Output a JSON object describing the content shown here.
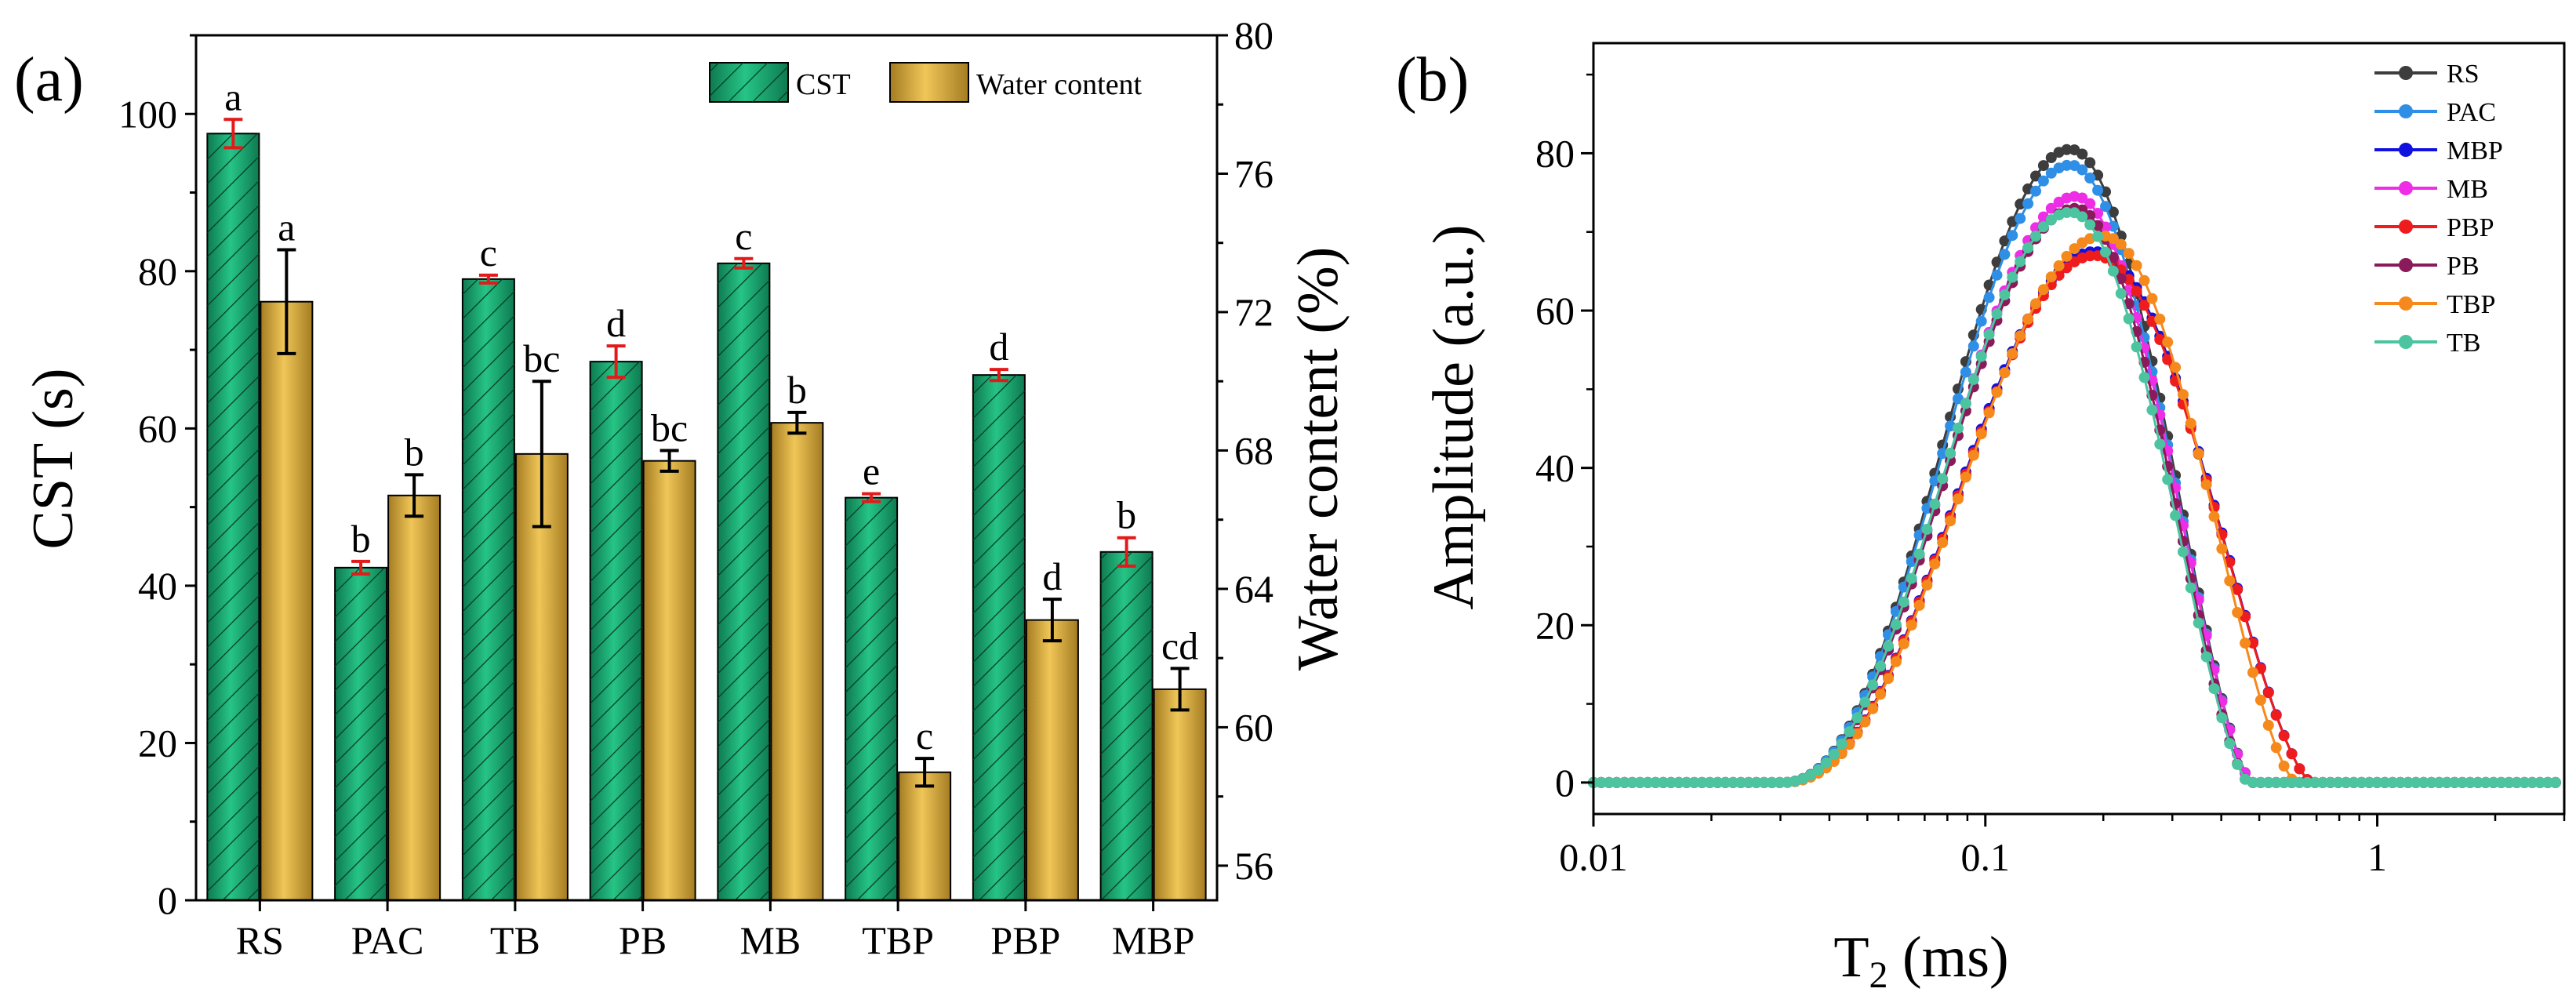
{
  "chart_data": [
    {
      "type": "bar",
      "panel_label": "(a)",
      "categories": [
        "RS",
        "PAC",
        "TB",
        "PB",
        "MB",
        "TBP",
        "PBP",
        "MBP"
      ],
      "ylabel": "CST (s)",
      "ylabel_right": "Water content (%)",
      "ylim": [
        0,
        110
      ],
      "ylim_right": [
        55,
        80
      ],
      "yticks": [
        "0",
        "20",
        "40",
        "60",
        "80",
        "100"
      ],
      "yticks_right": [
        "56",
        "60",
        "64",
        "68",
        "72",
        "76",
        "80"
      ],
      "legend": [
        "CST",
        "Water content"
      ],
      "legend_position": "top-right",
      "series": [
        {
          "name": "CST",
          "axis": "left",
          "color": "#1aa06a",
          "values": [
            97.5,
            42.3,
            79.0,
            68.5,
            81.0,
            51.2,
            66.8,
            44.3
          ],
          "errors": [
            1.8,
            0.8,
            0.5,
            2.0,
            0.6,
            0.5,
            0.7,
            1.8
          ],
          "letters": [
            "a",
            "b",
            "c",
            "d",
            "c",
            "e",
            "d",
            "b"
          ]
        },
        {
          "name": "Water content",
          "axis": "right",
          "color": "#d4a93a",
          "values": [
            72.3,
            66.7,
            67.9,
            67.7,
            68.8,
            58.7,
            63.1,
            61.1
          ],
          "errors": [
            1.5,
            0.6,
            2.1,
            0.3,
            0.3,
            0.4,
            0.6,
            0.6
          ],
          "letters": [
            "a",
            "b",
            "bc",
            "bc",
            "b",
            "c",
            "d",
            "cd"
          ]
        }
      ]
    },
    {
      "type": "line",
      "panel_label": "(b)",
      "xlabel": "T",
      "xlabel_sub": "2",
      "xlabel_unit": " (ms)",
      "ylabel": "Amplitude (a.u.)",
      "xscale": "log",
      "xlim": [
        0.01,
        3.0
      ],
      "ylim": [
        -4,
        94
      ],
      "xticks": [
        "0.01",
        "0.1",
        "1"
      ],
      "yticks": [
        "0",
        "20",
        "40",
        "60",
        "80"
      ],
      "legend_position": "top-right",
      "series": [
        {
          "name": "RS",
          "color": "#3d3d3d",
          "peak_x": 0.165,
          "peak_y": 80.5,
          "x_min": 0.03,
          "x_max": 0.48
        },
        {
          "name": "PAC",
          "color": "#2f8fe6",
          "peak_x": 0.165,
          "peak_y": 78.5,
          "x_min": 0.03,
          "x_max": 0.48
        },
        {
          "name": "MBP",
          "color": "#1010e0",
          "peak_x": 0.19,
          "peak_y": 67.5,
          "x_min": 0.03,
          "x_max": 0.68
        },
        {
          "name": "MB",
          "color": "#ee2ee6",
          "peak_x": 0.17,
          "peak_y": 74.5,
          "x_min": 0.03,
          "x_max": 0.48
        },
        {
          "name": "PBP",
          "color": "#ee1c1c",
          "peak_x": 0.19,
          "peak_y": 67.0,
          "x_min": 0.03,
          "x_max": 0.68
        },
        {
          "name": "PB",
          "color": "#8a1a5a",
          "peak_x": 0.17,
          "peak_y": 73.0,
          "x_min": 0.03,
          "x_max": 0.47
        },
        {
          "name": "TBP",
          "color": "#f5891c",
          "peak_x": 0.2,
          "peak_y": 69.5,
          "x_min": 0.03,
          "x_max": 0.62
        },
        {
          "name": "TB",
          "color": "#4cc4a0",
          "peak_x": 0.165,
          "peak_y": 72.5,
          "x_min": 0.03,
          "x_max": 0.47
        }
      ]
    }
  ]
}
